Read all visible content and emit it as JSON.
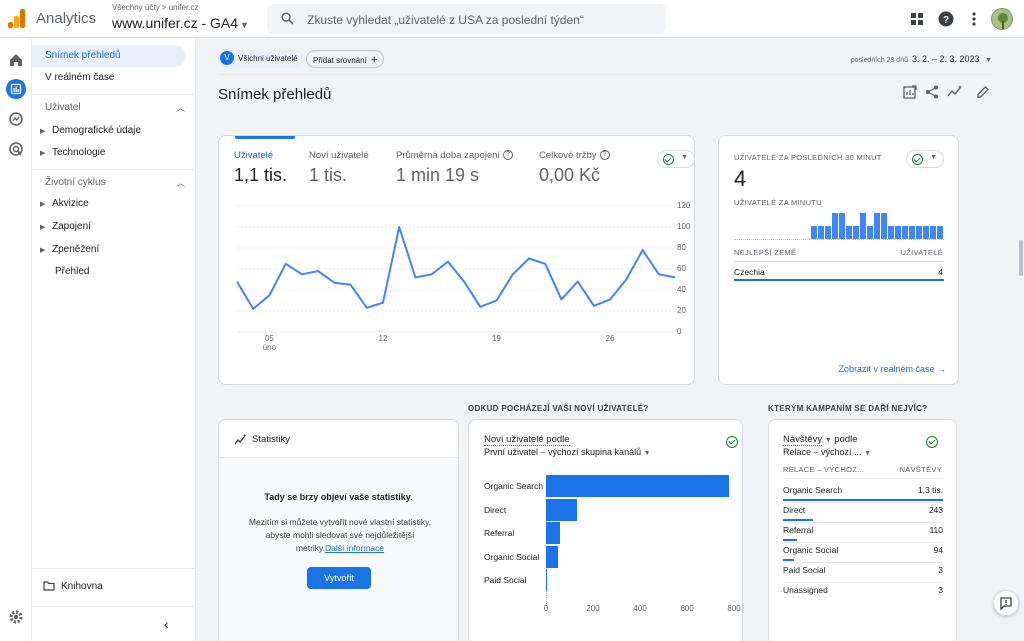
{
  "header": {
    "app_name": "Analytics",
    "breadcrumb": "Všechny účty > unifer.cz",
    "property": "www.unifer.cz - GA4",
    "search_placeholder": "Zkuste vyhledat „uživatelé z USA za poslední týden“",
    "icons": [
      "apps-grid-icon",
      "help-icon",
      "more-vert-icon",
      "avatar"
    ]
  },
  "sidenav": {
    "items": [
      {
        "label": "Snímek přehledů",
        "active": true
      },
      {
        "label": "V reálném čase"
      }
    ],
    "sections": [
      {
        "label": "Uživatel",
        "children": [
          "Demografické údaje",
          "Technologie"
        ]
      },
      {
        "label": "Životní cyklus",
        "children": [
          "Akvizice",
          "Zapojení",
          "Zpeněžení"
        ],
        "leaf": "Přehled"
      }
    ],
    "library": "Knihovna",
    "collapse_icon": "chevron-left-icon"
  },
  "toolbar": {
    "segment_chip_letter": "V",
    "segment_chip": "Všichni uživatelé",
    "add_comparison": "Přidat srovnání",
    "date_hint": "posledních 28 dnů",
    "date_range": "3. 2. – 2. 3. 2023",
    "page_title": "Snímek přehledů"
  },
  "overview": {
    "metrics": [
      {
        "label": "Uživatelé",
        "value": "1,1 tis."
      },
      {
        "label": "Noví uživatelé",
        "value": "1 tis."
      },
      {
        "label": "Průměrná doba zapojení",
        "value": "1 min 19 s"
      },
      {
        "label": "Celkové tržby",
        "value": "0,00 Kč"
      }
    ],
    "chart_data": {
      "type": "line",
      "x": [
        "3.2.",
        "4.2.",
        "5.2.",
        "6.2.",
        "7.2.",
        "8.2.",
        "9.2.",
        "10.2.",
        "11.2.",
        "12.2.",
        "13.2.",
        "14.2.",
        "15.2.",
        "16.2.",
        "17.2.",
        "18.2.",
        "19.2.",
        "20.2.",
        "21.2.",
        "22.2.",
        "23.2.",
        "24.2.",
        "25.2.",
        "26.2.",
        "27.2.",
        "28.2.",
        "1.3.",
        "2.3."
      ],
      "values": [
        48,
        22,
        35,
        65,
        55,
        58,
        47,
        45,
        23,
        28,
        100,
        52,
        55,
        67,
        48,
        24,
        30,
        55,
        70,
        65,
        31,
        48,
        25,
        31,
        50,
        78,
        55,
        52
      ],
      "ylim": [
        0,
        120
      ],
      "yticks": [
        "120",
        "100",
        "80",
        "60",
        "40",
        "20",
        "0"
      ],
      "xticks": [
        {
          "label": "05",
          "sub": "úno"
        },
        {
          "label": "12",
          "sub": ""
        },
        {
          "label": "19",
          "sub": ""
        },
        {
          "label": "26",
          "sub": ""
        }
      ],
      "color": "#4285f4",
      "grid": true
    }
  },
  "realtime": {
    "title": "UŽIVATELÉ ZA POSLEDNÍCH 30 MINUT",
    "value": "4",
    "subtitle": "UŽIVATELÉ ZA MINUTU",
    "per_minute": [
      0,
      0,
      0,
      0,
      0,
      0,
      0,
      0,
      0,
      0,
      0,
      1,
      1,
      1,
      2,
      2,
      1,
      1,
      2,
      1,
      2,
      2,
      1,
      1,
      1,
      1,
      1,
      1,
      1,
      1
    ],
    "col_left": "NEJLEPŠÍ ZEMĚ",
    "col_right": "UŽIVATELÉ",
    "rows": [
      {
        "name": "Czechia",
        "value": "4"
      }
    ],
    "link": "Zobrazit v reálném čase"
  },
  "insights": {
    "title": "Statistiky",
    "heading": "Tady se brzy objeví vaše statistiky.",
    "body": "Mezitím si můžete vytvořit nové vlastní statistiky, abyste mohli sledovat své nejdůležitější metriky.",
    "link": "Další informace",
    "button": "Vytvořit"
  },
  "acquisition": {
    "section_title": "ODKUD POCHÁZEJÍ VAŠI NOVÍ UŽIVATELÉ?",
    "metric": "Noví uživatelé podle",
    "dimension": "První uživatel – výchozí skupina kanálů",
    "chart_data": {
      "type": "bar",
      "categories": [
        "Organic Search",
        "Direct",
        "Referral",
        "Organic Social",
        "Paid Social"
      ],
      "values": [
        780,
        130,
        60,
        50,
        2
      ],
      "xticks": [
        "0",
        "200",
        "400",
        "600",
        "800"
      ],
      "xlim": [
        0,
        800
      ],
      "color": "#1a73e8"
    }
  },
  "campaigns": {
    "section_title": "KTERÝM KAMPANÍM SE DAŘÍ NEJVÍC?",
    "metric": "Návštěvy",
    "metric_suffix": "podle",
    "dimension": "Relace – výchozí ...",
    "col_left": "RELACE – VÝCHOZ...",
    "col_right": "NÁVŠTĚVY",
    "rows": [
      {
        "name": "Organic Search",
        "value": "1,3 tis.",
        "share": 1.0
      },
      {
        "name": "Direct",
        "value": "243",
        "share": 0.19
      },
      {
        "name": "Referral",
        "value": "110",
        "share": 0.09
      },
      {
        "name": "Organic Social",
        "value": "94",
        "share": 0.07
      },
      {
        "name": "Paid Social",
        "value": "3",
        "share": 0
      },
      {
        "name": "Unassigned",
        "value": "3",
        "share": 0
      }
    ]
  },
  "colors": {
    "accent": "#1a73e8",
    "success": "#188038",
    "logo_orange": "#e37400",
    "logo_yellow": "#f9ab00"
  }
}
